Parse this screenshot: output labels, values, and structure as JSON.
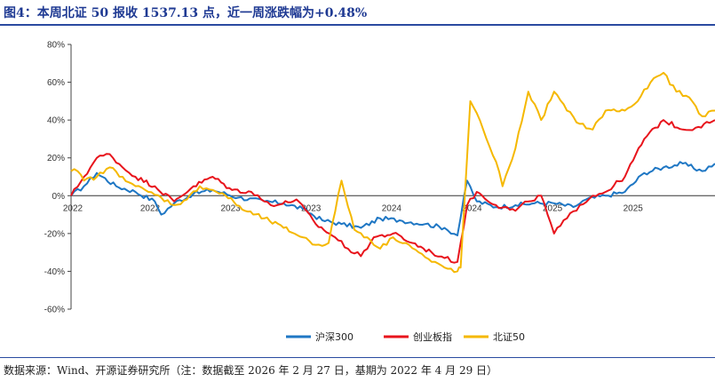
{
  "title": "图4：本周北证 50 报收 1537.13 点，近一周涨跌幅为+0.48%",
  "source": "数据来源：Wind、开源证券研究所（注：数据截至 2026 年 2 月 27 日，基期为 2022 年 4 月 29 日）",
  "chart_data": {
    "type": "line",
    "title": "",
    "xlabel": "",
    "ylabel": "",
    "ylim": [
      -60,
      80
    ],
    "y_ticks": [
      "80%",
      "60%",
      "40%",
      "20%",
      "0%",
      "-20%",
      "-40%",
      "-60%"
    ],
    "y_tick_values": [
      80,
      60,
      40,
      20,
      0,
      -20,
      -40,
      -60
    ],
    "x_tick_labels": [
      "2022",
      "2022",
      "2023",
      "2023",
      "2024",
      "2024",
      "2025",
      "2025"
    ],
    "x_tick_positions": [
      0.0,
      0.12,
      0.245,
      0.37,
      0.495,
      0.62,
      0.745,
      0.87
    ],
    "grid": false,
    "legend_position": "bottom",
    "series": [
      {
        "name": "沪深300",
        "color": "#1f77c4",
        "x": [
          0.0,
          0.02,
          0.04,
          0.07,
          0.1,
          0.13,
          0.14,
          0.16,
          0.19,
          0.22,
          0.26,
          0.3,
          0.33,
          0.36,
          0.39,
          0.42,
          0.45,
          0.48,
          0.51,
          0.55,
          0.58,
          0.6,
          0.615,
          0.63,
          0.66,
          0.69,
          0.72,
          0.75,
          0.78,
          0.8,
          0.83,
          0.86,
          0.89,
          0.92,
          0.95,
          0.98,
          1.0
        ],
        "values": [
          0,
          5,
          12,
          5,
          2,
          -3,
          -10,
          -4,
          1,
          3,
          -1,
          -3,
          -4,
          -7,
          -13,
          -15,
          -17,
          -12,
          -13,
          -15,
          -17,
          -21,
          8,
          -3,
          -6,
          -5,
          -4,
          -4,
          -6,
          -2,
          0,
          2,
          12,
          15,
          17,
          13,
          17
        ]
      },
      {
        "name": "创业板指",
        "color": "#e8141c",
        "x": [
          0.0,
          0.02,
          0.04,
          0.06,
          0.08,
          0.1,
          0.13,
          0.16,
          0.19,
          0.22,
          0.25,
          0.28,
          0.3,
          0.32,
          0.35,
          0.38,
          0.41,
          0.43,
          0.45,
          0.47,
          0.5,
          0.53,
          0.56,
          0.58,
          0.6,
          0.615,
          0.63,
          0.66,
          0.69,
          0.71,
          0.73,
          0.75,
          0.77,
          0.79,
          0.81,
          0.83,
          0.86,
          0.89,
          0.92,
          0.95,
          0.97,
          1.0
        ],
        "values": [
          0,
          10,
          20,
          22,
          15,
          10,
          5,
          -3,
          5,
          10,
          3,
          2,
          -3,
          -5,
          -2,
          -15,
          -22,
          -28,
          -32,
          -22,
          -20,
          -25,
          -30,
          -33,
          -35,
          -5,
          2,
          -5,
          -8,
          -3,
          0,
          -20,
          -12,
          -5,
          0,
          2,
          10,
          30,
          40,
          35,
          36,
          40
        ]
      },
      {
        "name": "北证50",
        "color": "#f5b800",
        "x": [
          0.0,
          0.01,
          0.02,
          0.04,
          0.06,
          0.08,
          0.1,
          0.12,
          0.14,
          0.16,
          0.18,
          0.2,
          0.22,
          0.24,
          0.27,
          0.3,
          0.33,
          0.36,
          0.38,
          0.4,
          0.42,
          0.44,
          0.46,
          0.48,
          0.5,
          0.52,
          0.54,
          0.56,
          0.58,
          0.6,
          0.605,
          0.62,
          0.64,
          0.66,
          0.67,
          0.69,
          0.71,
          0.73,
          0.75,
          0.77,
          0.79,
          0.81,
          0.83,
          0.86,
          0.88,
          0.9,
          0.92,
          0.94,
          0.96,
          0.98,
          1.0
        ],
        "values": [
          13,
          13,
          8,
          10,
          15,
          10,
          5,
          2,
          -1,
          -5,
          -2,
          5,
          3,
          0,
          -8,
          -12,
          -17,
          -22,
          -26,
          -25,
          8,
          -18,
          -22,
          -28,
          -22,
          -25,
          -30,
          -35,
          -38,
          -40,
          -38,
          50,
          35,
          18,
          5,
          25,
          55,
          40,
          55,
          45,
          38,
          35,
          45,
          45,
          50,
          60,
          65,
          55,
          52,
          42,
          45
        ]
      }
    ]
  }
}
